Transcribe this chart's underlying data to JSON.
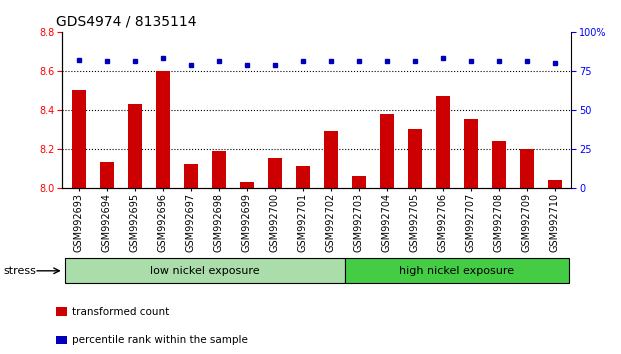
{
  "title": "GDS4974 / 8135114",
  "categories": [
    "GSM992693",
    "GSM992694",
    "GSM992695",
    "GSM992696",
    "GSM992697",
    "GSM992698",
    "GSM992699",
    "GSM992700",
    "GSM992701",
    "GSM992702",
    "GSM992703",
    "GSM992704",
    "GSM992705",
    "GSM992706",
    "GSM992707",
    "GSM992708",
    "GSM992709",
    "GSM992710"
  ],
  "bar_values": [
    8.5,
    8.13,
    8.43,
    8.6,
    8.12,
    8.19,
    8.03,
    8.15,
    8.11,
    8.29,
    8.06,
    8.38,
    8.3,
    8.47,
    8.35,
    8.24,
    8.2,
    8.04
  ],
  "dot_values": [
    82,
    81,
    81,
    83,
    79,
    81,
    79,
    79,
    81,
    81,
    81,
    81,
    81,
    83,
    81,
    81,
    81,
    80
  ],
  "bar_color": "#cc0000",
  "dot_color": "#0000bb",
  "ylim_left": [
    8.0,
    8.8
  ],
  "ylim_right": [
    0,
    100
  ],
  "yticks_left": [
    8.0,
    8.2,
    8.4,
    8.6,
    8.8
  ],
  "yticks_right": [
    0,
    25,
    50,
    75,
    100
  ],
  "grid_values": [
    8.2,
    8.4,
    8.6
  ],
  "group_low_label": "low nickel exposure",
  "group_high_label": "high nickel exposure",
  "stress_label": "stress",
  "legend_bar": "transformed count",
  "legend_dot": "percentile rank within the sample",
  "background_color": "#ffffff",
  "plot_bg_color": "#ffffff",
  "low_group_color": "#aaddaa",
  "high_group_color": "#44cc44",
  "bar_width": 0.5,
  "title_fontsize": 10,
  "tick_fontsize": 7,
  "n_low": 10,
  "n_high": 8
}
